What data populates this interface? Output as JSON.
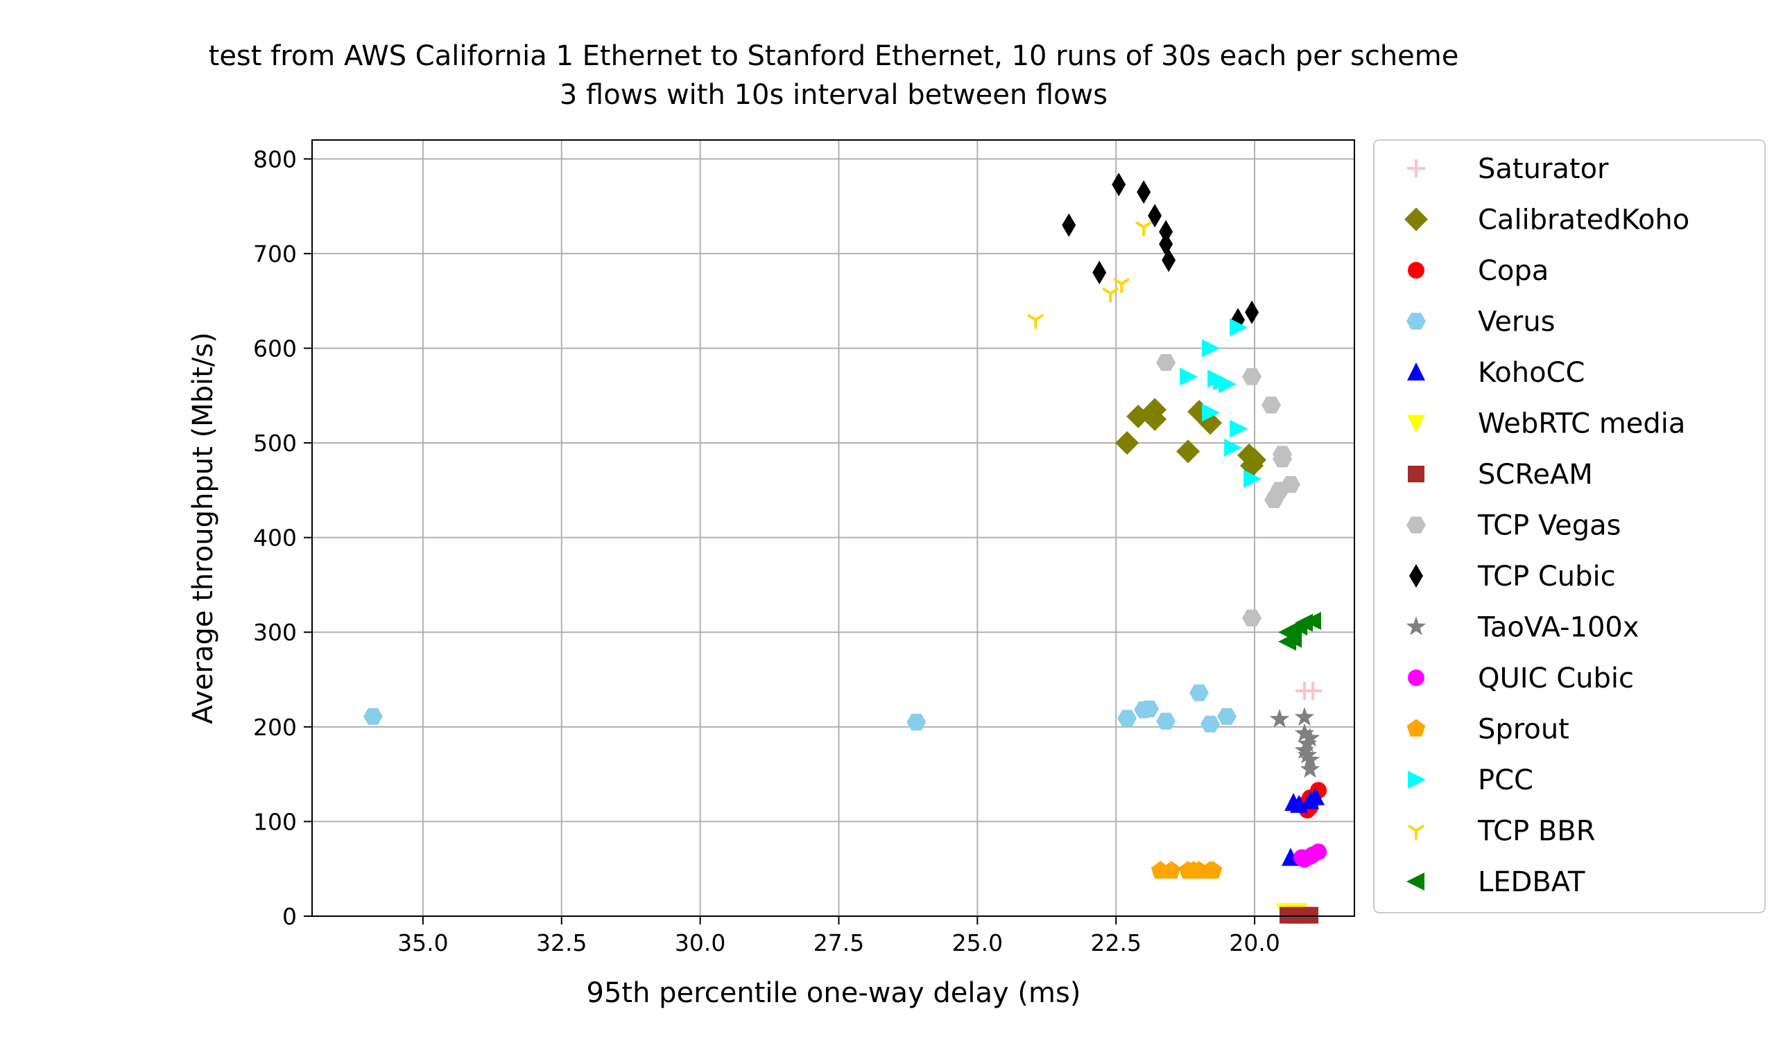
{
  "chart_data": {
    "type": "scatter",
    "title": "test from AWS California 1 Ethernet to Stanford Ethernet, 10 runs of 30s each per scheme",
    "subtitle": "3 flows with 10s interval between flows",
    "xlabel": "95th percentile one-way delay (ms)",
    "ylabel": "Average throughput (Mbit/s)",
    "xlim": [
      37.0,
      18.2
    ],
    "ylim": [
      0,
      820
    ],
    "x_inverted": true,
    "grid": true,
    "legend_position": "outside-right",
    "xticks": [
      "35.0",
      "32.5",
      "30.0",
      "27.5",
      "25.0",
      "22.5",
      "20.0"
    ],
    "xtick_values": [
      35.0,
      32.5,
      30.0,
      27.5,
      25.0,
      22.5,
      20.0
    ],
    "yticks": [
      "0",
      "100",
      "200",
      "300",
      "400",
      "500",
      "600",
      "700",
      "800"
    ],
    "ytick_values": [
      0,
      100,
      200,
      300,
      400,
      500,
      600,
      700,
      800
    ],
    "series": [
      {
        "name": "Saturator",
        "color": "#ffc0cb",
        "marker": "plus",
        "points": [
          [
            19.1,
            238
          ],
          [
            18.95,
            238
          ]
        ]
      },
      {
        "name": "CalibratedKoho",
        "color": "#808000",
        "marker": "diamond",
        "points": [
          [
            22.1,
            528
          ],
          [
            21.8,
            535
          ],
          [
            21.8,
            525
          ],
          [
            22.3,
            500
          ],
          [
            21.2,
            491
          ],
          [
            21.0,
            533
          ],
          [
            20.8,
            521
          ],
          [
            20.1,
            487
          ],
          [
            20.05,
            476
          ],
          [
            20.0,
            482
          ]
        ]
      },
      {
        "name": "Copa",
        "color": "#ff0000",
        "marker": "circle",
        "points": [
          [
            18.85,
            133
          ],
          [
            19.0,
            115
          ],
          [
            19.05,
            112
          ],
          [
            19.0,
            125
          ],
          [
            19.1,
            118
          ]
        ]
      },
      {
        "name": "Verus",
        "color": "#87ceeb",
        "marker": "hexagon",
        "points": [
          [
            35.9,
            211
          ],
          [
            26.1,
            205
          ],
          [
            22.3,
            209
          ],
          [
            21.9,
            219
          ],
          [
            21.6,
            206
          ],
          [
            21.0,
            236
          ],
          [
            20.8,
            203
          ],
          [
            20.5,
            211
          ],
          [
            22.0,
            218
          ]
        ]
      },
      {
        "name": "KohoCC",
        "color": "#0000ff",
        "marker": "triangle-up",
        "points": [
          [
            19.3,
            120
          ],
          [
            19.2,
            118
          ],
          [
            19.0,
            122
          ],
          [
            18.9,
            126
          ],
          [
            19.35,
            62
          ]
        ]
      },
      {
        "name": "WebRTC media",
        "color": "#ffff00",
        "marker": "triangle-down",
        "points": [
          [
            19.45,
            5
          ],
          [
            19.35,
            4
          ],
          [
            19.2,
            5
          ]
        ]
      },
      {
        "name": "SCReAM",
        "color": "#a52a2a",
        "marker": "square",
        "points": [
          [
            19.4,
            1
          ],
          [
            19.3,
            1
          ],
          [
            19.2,
            1
          ],
          [
            19.1,
            1
          ],
          [
            19.0,
            1
          ]
        ]
      },
      {
        "name": "TCP Vegas",
        "color": "#c0c0c0",
        "marker": "hexagon",
        "points": [
          [
            21.6,
            585
          ],
          [
            20.05,
            570
          ],
          [
            19.7,
            540
          ],
          [
            19.5,
            488
          ],
          [
            19.5,
            483
          ],
          [
            19.35,
            456
          ],
          [
            19.55,
            450
          ],
          [
            19.65,
            440
          ],
          [
            20.05,
            315
          ]
        ]
      },
      {
        "name": "TCP Cubic",
        "color": "#000000",
        "marker": "thin-diamond",
        "points": [
          [
            22.45,
            773
          ],
          [
            22.0,
            765
          ],
          [
            21.8,
            740
          ],
          [
            21.6,
            723
          ],
          [
            21.6,
            710
          ],
          [
            21.55,
            693
          ],
          [
            23.35,
            730
          ],
          [
            22.8,
            680
          ],
          [
            20.3,
            630
          ],
          [
            20.05,
            638
          ]
        ]
      },
      {
        "name": "TaoVA-100x",
        "color": "#808080",
        "marker": "star",
        "points": [
          [
            19.55,
            208
          ],
          [
            19.1,
            210
          ],
          [
            19.1,
            193
          ],
          [
            19.05,
            182
          ],
          [
            19.0,
            188
          ],
          [
            19.05,
            170
          ],
          [
            19.0,
            155
          ],
          [
            19.1,
            175
          ],
          [
            19.0,
            165
          ]
        ]
      },
      {
        "name": "QUIC Cubic",
        "color": "#ff00ff",
        "marker": "circle",
        "points": [
          [
            18.85,
            68
          ],
          [
            19.0,
            63
          ],
          [
            19.1,
            60
          ],
          [
            19.15,
            62
          ],
          [
            18.95,
            65
          ]
        ]
      },
      {
        "name": "Sprout",
        "color": "#ffa500",
        "marker": "pentagon",
        "points": [
          [
            21.7,
            48
          ],
          [
            21.5,
            48
          ],
          [
            21.2,
            48
          ],
          [
            21.0,
            48
          ],
          [
            20.8,
            48
          ],
          [
            20.75,
            48
          ],
          [
            21.1,
            48
          ]
        ]
      },
      {
        "name": "PCC",
        "color": "#00ffff",
        "marker": "triangle-right",
        "points": [
          [
            20.3,
            622
          ],
          [
            20.8,
            600
          ],
          [
            21.2,
            570
          ],
          [
            20.7,
            568
          ],
          [
            20.5,
            562
          ],
          [
            20.8,
            532
          ],
          [
            20.3,
            515
          ],
          [
            20.4,
            495
          ],
          [
            20.05,
            462
          ],
          [
            20.6,
            565
          ]
        ]
      },
      {
        "name": "TCP BBR",
        "color": "#ffd700",
        "marker": "tri-down",
        "points": [
          [
            22.0,
            728
          ],
          [
            22.4,
            668
          ],
          [
            22.6,
            658
          ],
          [
            23.95,
            630
          ]
        ]
      },
      {
        "name": "LEDBAT",
        "color": "#008000",
        "marker": "triangle-left",
        "points": [
          [
            18.95,
            312
          ],
          [
            19.1,
            310
          ],
          [
            19.2,
            306
          ],
          [
            19.3,
            303
          ],
          [
            19.4,
            300
          ],
          [
            19.3,
            293
          ],
          [
            19.4,
            290
          ]
        ]
      }
    ]
  }
}
